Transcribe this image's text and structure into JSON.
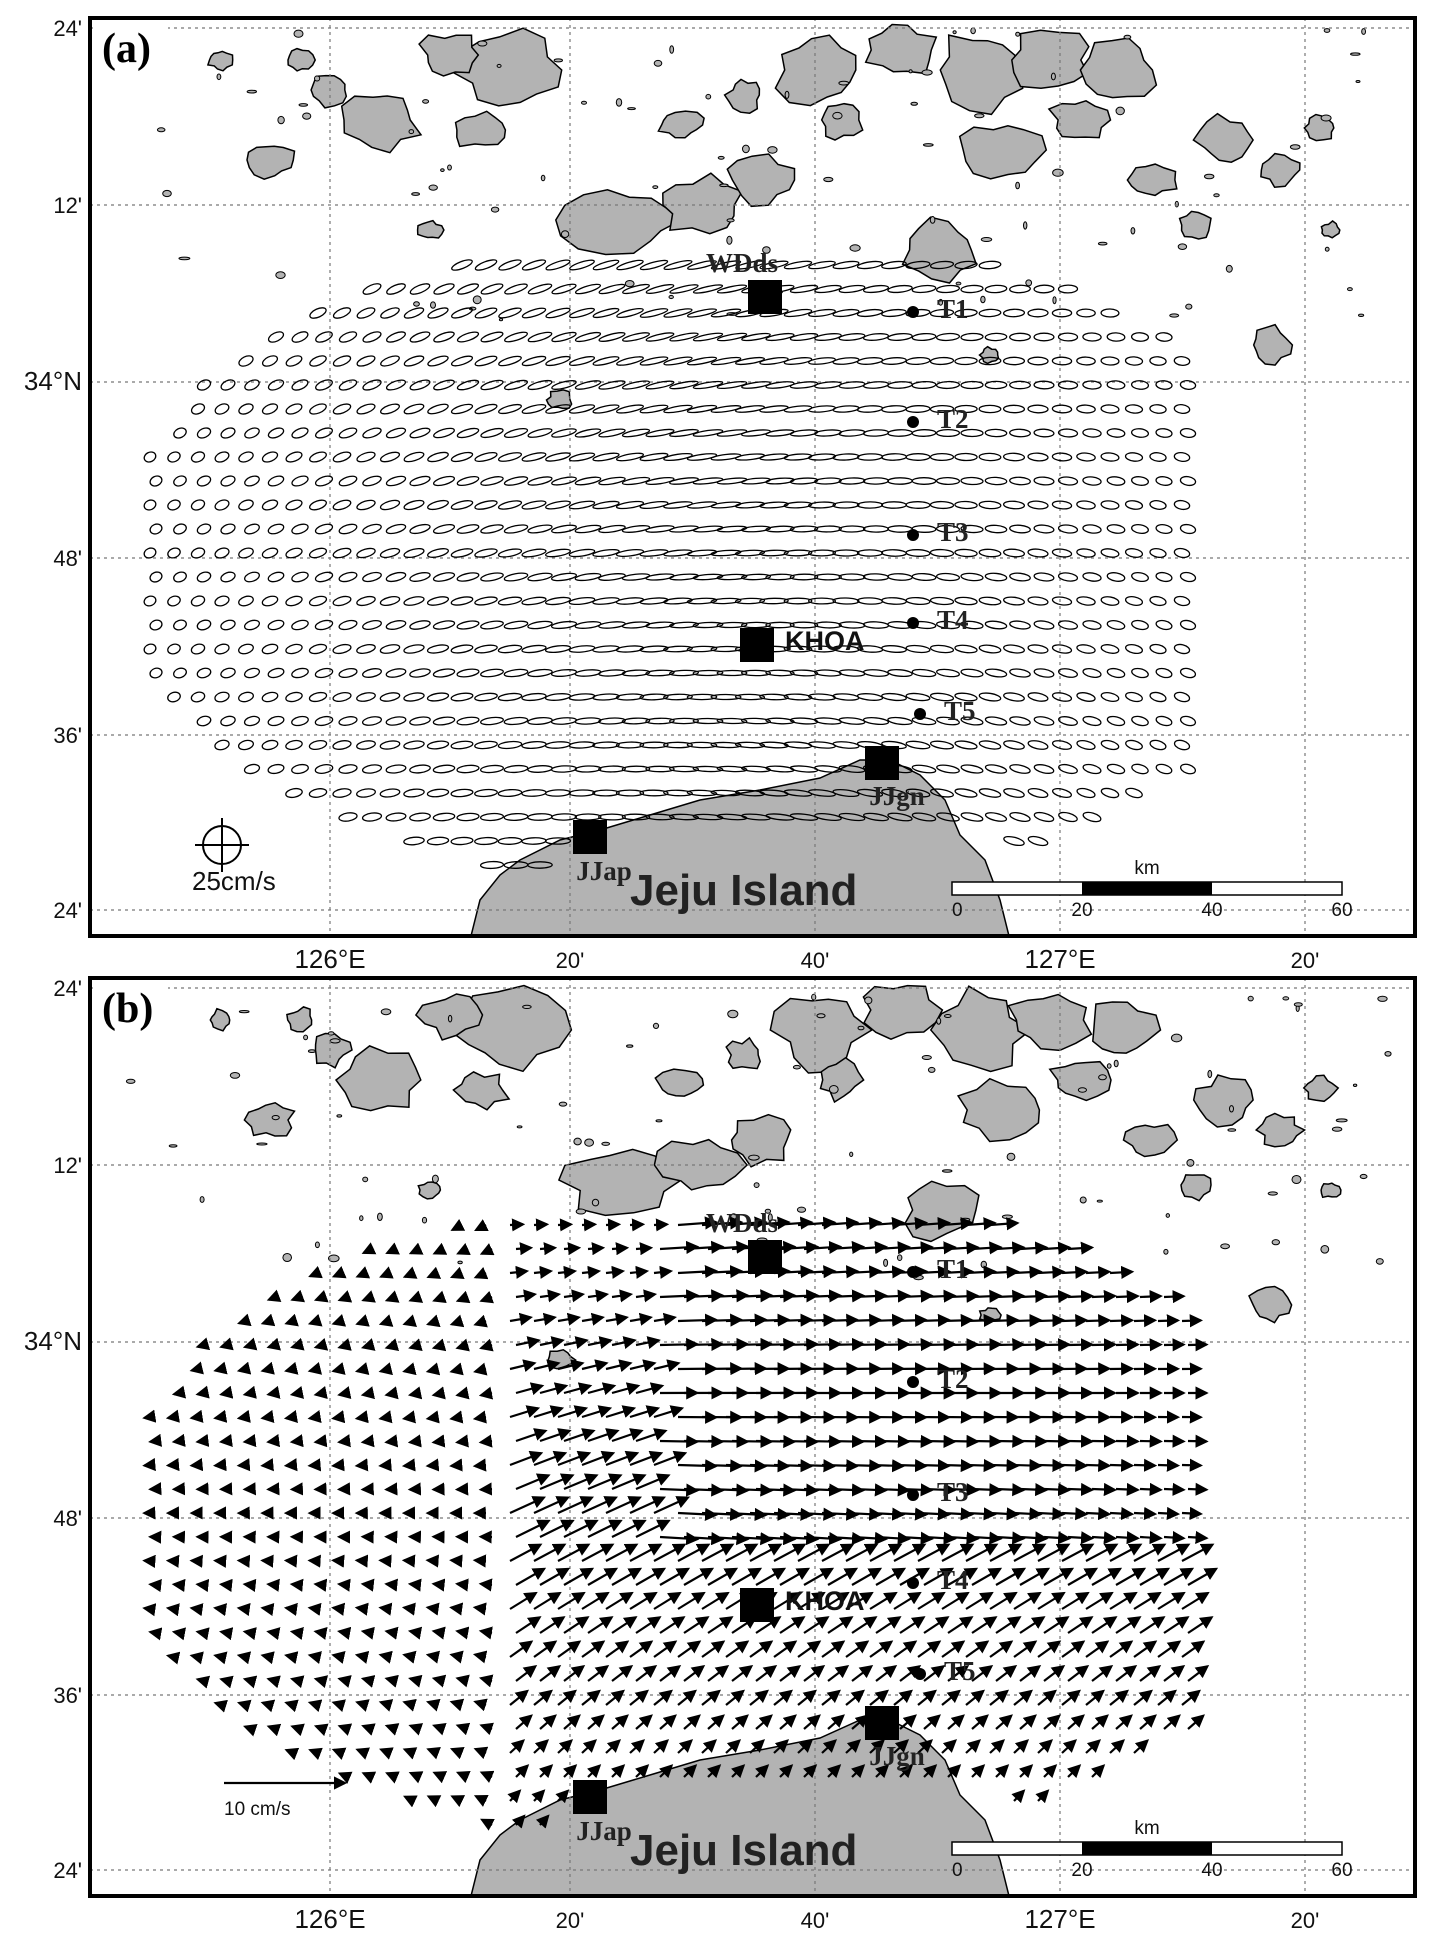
{
  "map": {
    "island_name": "Jeju Island",
    "scale_unit": "km",
    "scale_ticks": [
      "0",
      "20",
      "40",
      "60"
    ],
    "lon_labels": [
      "126°E",
      "20'",
      "40'",
      "127°E",
      "20'"
    ],
    "lat_labels": [
      "24'",
      "12'",
      "34°N",
      "48'",
      "36'",
      "24'"
    ],
    "stations": {
      "wdds": "WDds",
      "khoa": "KHOA",
      "jjgn": "JJgn",
      "jjap": "JJap",
      "t1": "T1",
      "t2": "T2",
      "t3": "T3",
      "t4": "T4",
      "t5": "T5"
    },
    "colors": {
      "land": "#b3b3b3",
      "grid": "#777777",
      "ink": "#000000"
    }
  },
  "panels": [
    {
      "tag": "(a)",
      "legend": "25cm/s",
      "content": "tidal current ellipses"
    },
    {
      "tag": "(b)",
      "legend": "10 cm/s",
      "content": "residual current vectors"
    }
  ]
}
